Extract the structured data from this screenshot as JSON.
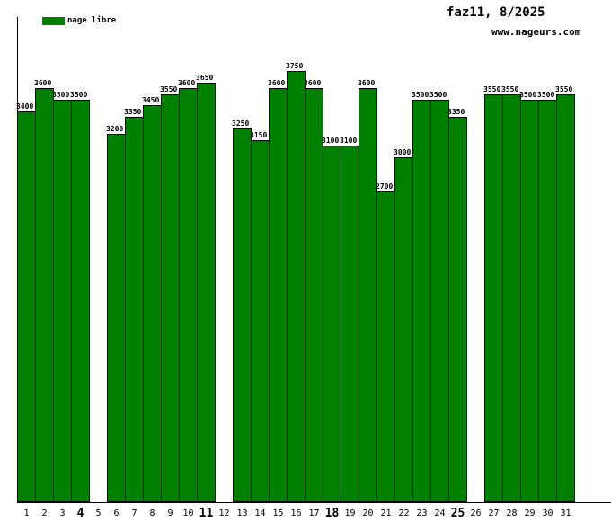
{
  "header": {
    "title": "faz11, 8/2025",
    "website": "www.nageurs.com"
  },
  "legend": {
    "label": "nage libre",
    "color": "#008000"
  },
  "chart_data": {
    "type": "bar",
    "title": "faz11, 8/2025",
    "subtitle": "www.nageurs.com",
    "series_name": "nage libre",
    "bar_color": "#008000",
    "bar_border_color": "#000000",
    "xlabel": "",
    "ylabel": "",
    "categories": [
      1,
      2,
      3,
      4,
      5,
      6,
      7,
      8,
      9,
      10,
      11,
      12,
      13,
      14,
      15,
      16,
      17,
      18,
      19,
      20,
      21,
      22,
      23,
      24,
      25,
      26,
      27,
      28,
      29,
      30,
      31
    ],
    "bold_categories": [
      4,
      11,
      18,
      25
    ],
    "values": [
      3400,
      3600,
      3500,
      3500,
      null,
      3200,
      3350,
      3450,
      3550,
      3600,
      3650,
      null,
      3250,
      3150,
      3600,
      3750,
      3600,
      3100,
      3100,
      3600,
      2700,
      3000,
      3500,
      3500,
      3350,
      null,
      3550,
      3550,
      3500,
      3500,
      3550
    ],
    "value_labels_shown": true,
    "grid": false,
    "legend_position": "top-left",
    "ylim": [
      0,
      4220
    ]
  }
}
